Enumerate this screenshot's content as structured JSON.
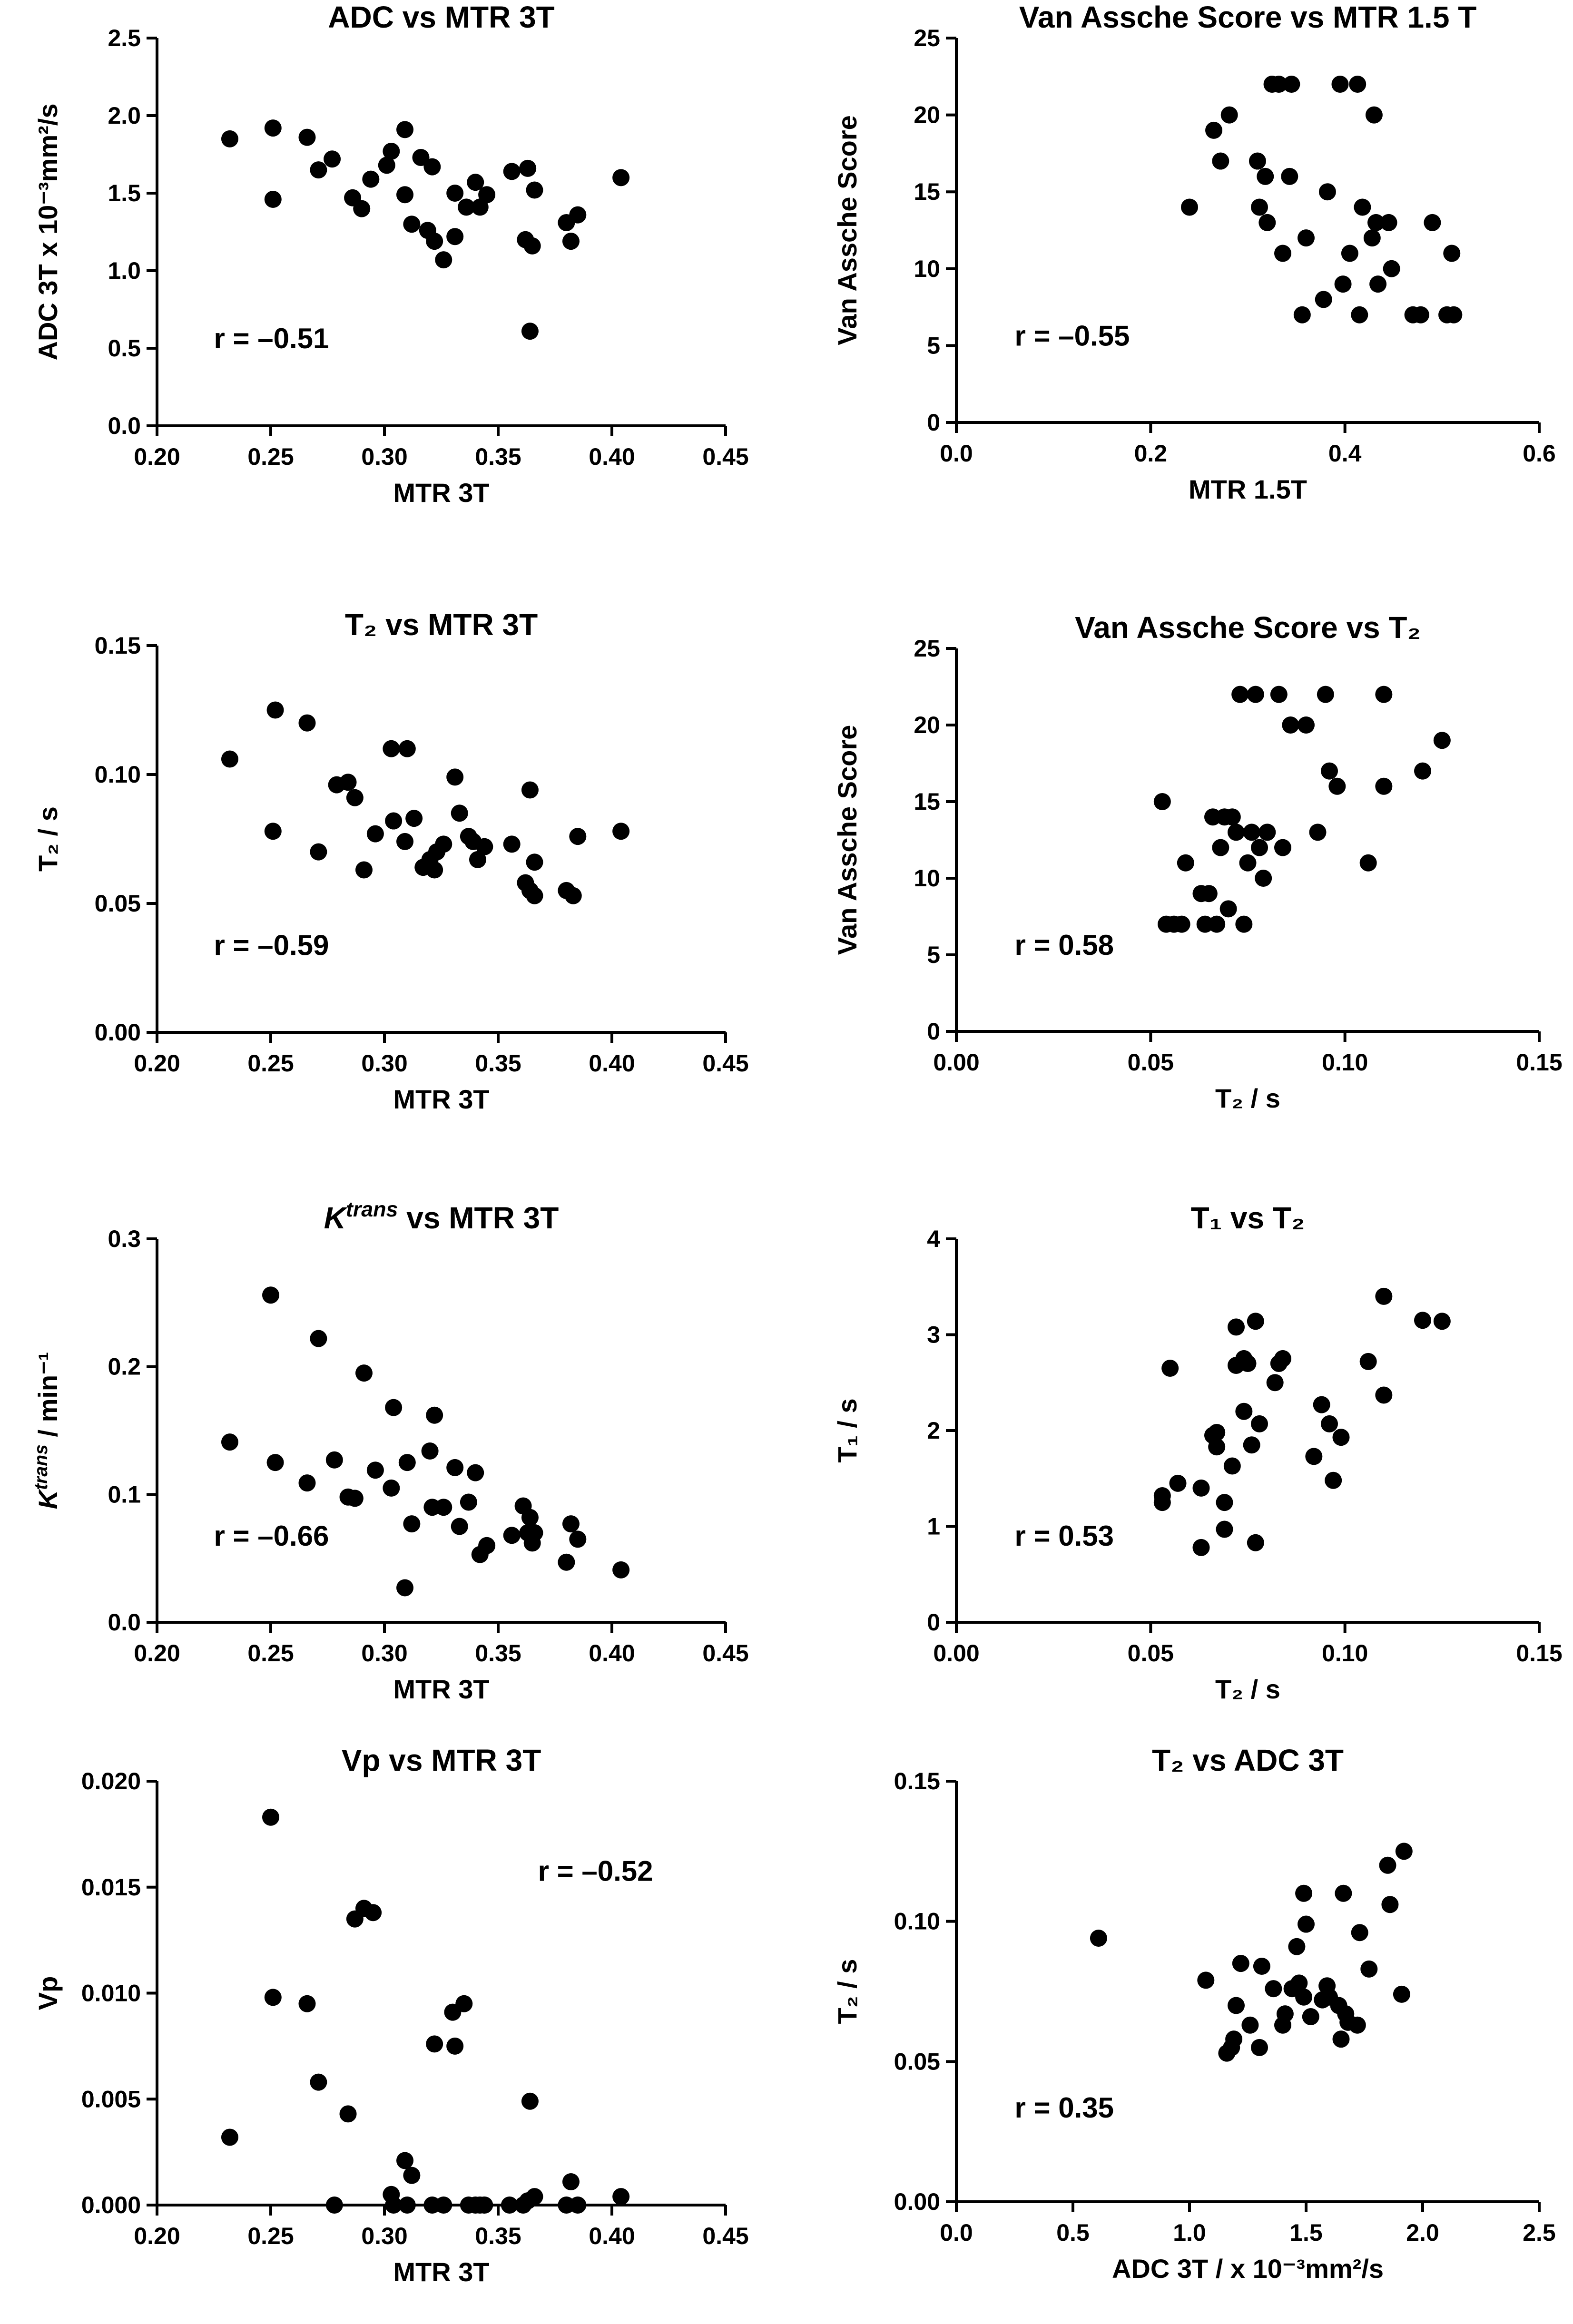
{
  "figure": {
    "background": "#ffffff",
    "ink": "#000000"
  },
  "chart_data": [
    {
      "id": "p1",
      "type": "scatter",
      "title": "ADC vs MTR 3T",
      "xlabel": "MTR 3T",
      "ylabel": "ADC 3T  x 10⁻³mm²/s",
      "xlim": [
        0.2,
        0.45
      ],
      "ylim": [
        0.0,
        2.5
      ],
      "xticks": [
        "0.20",
        "0.25",
        "0.30",
        "0.35",
        "0.40",
        "0.45"
      ],
      "yticks": [
        "0.0",
        "0.5",
        "1.0",
        "1.5",
        "2.0",
        "2.5"
      ],
      "annotation": "r = –0.51",
      "annotation_pos": "bottom-left",
      "grid": false,
      "points": [
        [
          0.232,
          1.85
        ],
        [
          0.251,
          1.92
        ],
        [
          0.251,
          1.46
        ],
        [
          0.266,
          1.86
        ],
        [
          0.271,
          1.65
        ],
        [
          0.277,
          1.72
        ],
        [
          0.286,
          1.47
        ],
        [
          0.29,
          1.4
        ],
        [
          0.294,
          1.59
        ],
        [
          0.301,
          1.68
        ],
        [
          0.303,
          1.77
        ],
        [
          0.309,
          1.91
        ],
        [
          0.309,
          1.49
        ],
        [
          0.312,
          1.3
        ],
        [
          0.316,
          1.73
        ],
        [
          0.319,
          1.26
        ],
        [
          0.321,
          1.67
        ],
        [
          0.322,
          1.19
        ],
        [
          0.326,
          1.07
        ],
        [
          0.331,
          1.5
        ],
        [
          0.331,
          1.22
        ],
        [
          0.336,
          1.41
        ],
        [
          0.34,
          1.57
        ],
        [
          0.342,
          1.41
        ],
        [
          0.345,
          1.49
        ],
        [
          0.356,
          1.64
        ],
        [
          0.362,
          1.2
        ],
        [
          0.363,
          1.66
        ],
        [
          0.364,
          0.61
        ],
        [
          0.365,
          1.16
        ],
        [
          0.366,
          1.52
        ],
        [
          0.38,
          1.31
        ],
        [
          0.382,
          1.19
        ],
        [
          0.385,
          1.36
        ],
        [
          0.404,
          1.6
        ]
      ]
    },
    {
      "id": "p2",
      "type": "scatter",
      "title": "Van Assche Score vs MTR 1.5 T",
      "xlabel": "MTR 1.5T",
      "ylabel": "Van Assche Score",
      "xlim": [
        0.0,
        0.6
      ],
      "ylim": [
        0,
        25
      ],
      "xticks": [
        "0.0",
        "0.2",
        "0.4",
        "0.6"
      ],
      "yticks": [
        "0",
        "5",
        "10",
        "15",
        "20",
        "25"
      ],
      "annotation": "r = –0.55",
      "annotation_pos": "bottom-left",
      "grid": false,
      "points": [
        [
          0.24,
          14
        ],
        [
          0.265,
          19
        ],
        [
          0.272,
          17
        ],
        [
          0.281,
          20
        ],
        [
          0.31,
          17
        ],
        [
          0.312,
          14
        ],
        [
          0.318,
          16
        ],
        [
          0.32,
          13
        ],
        [
          0.325,
          22
        ],
        [
          0.332,
          22
        ],
        [
          0.336,
          11
        ],
        [
          0.343,
          16
        ],
        [
          0.345,
          22
        ],
        [
          0.356,
          7
        ],
        [
          0.36,
          12
        ],
        [
          0.378,
          8
        ],
        [
          0.382,
          15
        ],
        [
          0.395,
          22
        ],
        [
          0.398,
          9
        ],
        [
          0.405,
          11
        ],
        [
          0.413,
          22
        ],
        [
          0.415,
          7
        ],
        [
          0.418,
          14
        ],
        [
          0.428,
          12
        ],
        [
          0.43,
          20
        ],
        [
          0.432,
          13
        ],
        [
          0.434,
          9
        ],
        [
          0.445,
          13
        ],
        [
          0.448,
          10
        ],
        [
          0.47,
          7
        ],
        [
          0.478,
          7
        ],
        [
          0.49,
          13
        ],
        [
          0.505,
          7
        ],
        [
          0.51,
          11
        ],
        [
          0.512,
          7
        ]
      ]
    },
    {
      "id": "p3",
      "type": "scatter",
      "title": "T₂ vs MTR 3T",
      "xlabel": "MTR 3T",
      "ylabel": "T₂  / s",
      "xlim": [
        0.2,
        0.45
      ],
      "ylim": [
        0.0,
        0.15
      ],
      "xticks": [
        "0.20",
        "0.25",
        "0.30",
        "0.35",
        "0.40",
        "0.45"
      ],
      "yticks": [
        "0.00",
        "0.05",
        "0.10",
        "0.15"
      ],
      "annotation": "r = –0.59",
      "annotation_pos": "bottom-left",
      "grid": false,
      "points": [
        [
          0.232,
          0.106
        ],
        [
          0.251,
          0.078
        ],
        [
          0.252,
          0.125
        ],
        [
          0.266,
          0.12
        ],
        [
          0.271,
          0.07
        ],
        [
          0.279,
          0.096
        ],
        [
          0.284,
          0.097
        ],
        [
          0.287,
          0.091
        ],
        [
          0.291,
          0.063
        ],
        [
          0.296,
          0.077
        ],
        [
          0.303,
          0.11
        ],
        [
          0.304,
          0.082
        ],
        [
          0.309,
          0.074
        ],
        [
          0.31,
          0.11
        ],
        [
          0.313,
          0.083
        ],
        [
          0.317,
          0.064
        ],
        [
          0.32,
          0.067
        ],
        [
          0.322,
          0.063
        ],
        [
          0.323,
          0.07
        ],
        [
          0.326,
          0.073
        ],
        [
          0.331,
          0.099
        ],
        [
          0.333,
          0.085
        ],
        [
          0.337,
          0.076
        ],
        [
          0.339,
          0.074
        ],
        [
          0.341,
          0.067
        ],
        [
          0.344,
          0.072
        ],
        [
          0.356,
          0.073
        ],
        [
          0.362,
          0.058
        ],
        [
          0.364,
          0.055
        ],
        [
          0.364,
          0.094
        ],
        [
          0.366,
          0.066
        ],
        [
          0.366,
          0.053
        ],
        [
          0.38,
          0.055
        ],
        [
          0.383,
          0.053
        ],
        [
          0.385,
          0.076
        ],
        [
          0.404,
          0.078
        ]
      ]
    },
    {
      "id": "p4",
      "type": "scatter",
      "title": "Van Assche Score vs T₂",
      "xlabel": "T₂ / s",
      "ylabel": "Van Assche Score",
      "xlim": [
        0.0,
        0.15
      ],
      "ylim": [
        0,
        25
      ],
      "xticks": [
        "0.00",
        "0.05",
        "0.10",
        "0.15"
      ],
      "yticks": [
        "0",
        "5",
        "10",
        "15",
        "20",
        "25"
      ],
      "annotation": "r = 0.58",
      "annotation_pos": "bottom-left",
      "grid": false,
      "points": [
        [
          0.053,
          15
        ],
        [
          0.054,
          7
        ],
        [
          0.056,
          7
        ],
        [
          0.058,
          7
        ],
        [
          0.059,
          11
        ],
        [
          0.063,
          9
        ],
        [
          0.064,
          7
        ],
        [
          0.065,
          9
        ],
        [
          0.066,
          14
        ],
        [
          0.067,
          7
        ],
        [
          0.068,
          12
        ],
        [
          0.069,
          14
        ],
        [
          0.07,
          8
        ],
        [
          0.071,
          14
        ],
        [
          0.072,
          13
        ],
        [
          0.073,
          22
        ],
        [
          0.074,
          7
        ],
        [
          0.075,
          11
        ],
        [
          0.076,
          13
        ],
        [
          0.077,
          22
        ],
        [
          0.078,
          12
        ],
        [
          0.079,
          10
        ],
        [
          0.08,
          13
        ],
        [
          0.083,
          22
        ],
        [
          0.084,
          12
        ],
        [
          0.086,
          20
        ],
        [
          0.09,
          20
        ],
        [
          0.093,
          13
        ],
        [
          0.095,
          22
        ],
        [
          0.096,
          17
        ],
        [
          0.098,
          16
        ],
        [
          0.106,
          11
        ],
        [
          0.11,
          22
        ],
        [
          0.11,
          16
        ],
        [
          0.12,
          17
        ],
        [
          0.125,
          19
        ]
      ]
    },
    {
      "id": "p5",
      "type": "scatter",
      "title": "K",
      "title_superscript": "trans",
      "title_suffix": " vs MTR 3T",
      "xlabel": "MTR 3T",
      "ylabel": "K",
      "ylabel_superscript": "trans",
      "ylabel_suffix": " / min⁻¹",
      "xlim": [
        0.2,
        0.45
      ],
      "ylim": [
        0.0,
        0.3
      ],
      "xticks": [
        "0.20",
        "0.25",
        "0.30",
        "0.35",
        "0.40",
        "0.45"
      ],
      "yticks": [
        "0.0",
        "0.1",
        "0.2",
        "0.3"
      ],
      "annotation": "r = –0.66",
      "annotation_pos": "bottom-left",
      "grid": false,
      "points": [
        [
          0.232,
          0.141
        ],
        [
          0.25,
          0.256
        ],
        [
          0.252,
          0.125
        ],
        [
          0.266,
          0.109
        ],
        [
          0.271,
          0.222
        ],
        [
          0.278,
          0.127
        ],
        [
          0.284,
          0.098
        ],
        [
          0.287,
          0.097
        ],
        [
          0.291,
          0.195
        ],
        [
          0.296,
          0.119
        ],
        [
          0.303,
          0.105
        ],
        [
          0.304,
          0.168
        ],
        [
          0.309,
          0.027
        ],
        [
          0.31,
          0.125
        ],
        [
          0.312,
          0.077
        ],
        [
          0.32,
          0.134
        ],
        [
          0.321,
          0.09
        ],
        [
          0.322,
          0.162
        ],
        [
          0.326,
          0.09
        ],
        [
          0.331,
          0.121
        ],
        [
          0.333,
          0.075
        ],
        [
          0.337,
          0.094
        ],
        [
          0.34,
          0.117
        ],
        [
          0.342,
          0.053
        ],
        [
          0.345,
          0.06
        ],
        [
          0.356,
          0.068
        ],
        [
          0.361,
          0.091
        ],
        [
          0.363,
          0.07
        ],
        [
          0.364,
          0.082
        ],
        [
          0.365,
          0.062
        ],
        [
          0.366,
          0.07
        ],
        [
          0.38,
          0.047
        ],
        [
          0.382,
          0.077
        ],
        [
          0.385,
          0.065
        ],
        [
          0.404,
          0.041
        ]
      ]
    },
    {
      "id": "p6",
      "type": "scatter",
      "title": "T₁ vs T₂",
      "xlabel": "T₂ / s",
      "ylabel": "T₁ / s",
      "xlim": [
        0.0,
        0.15
      ],
      "ylim": [
        0,
        4
      ],
      "xticks": [
        "0.00",
        "0.05",
        "0.10",
        "0.15"
      ],
      "yticks": [
        "0",
        "1",
        "2",
        "3",
        "4"
      ],
      "annotation": "r = 0.53",
      "annotation_pos": "bottom-left",
      "grid": false,
      "points": [
        [
          0.053,
          1.32
        ],
        [
          0.053,
          1.25
        ],
        [
          0.055,
          2.65
        ],
        [
          0.057,
          1.45
        ],
        [
          0.063,
          1.4
        ],
        [
          0.063,
          0.78
        ],
        [
          0.066,
          1.95
        ],
        [
          0.067,
          1.83
        ],
        [
          0.067,
          1.98
        ],
        [
          0.069,
          0.97
        ],
        [
          0.069,
          1.25
        ],
        [
          0.071,
          1.63
        ],
        [
          0.072,
          3.08
        ],
        [
          0.072,
          2.68
        ],
        [
          0.074,
          2.2
        ],
        [
          0.074,
          2.75
        ],
        [
          0.075,
          2.7
        ],
        [
          0.076,
          1.85
        ],
        [
          0.077,
          0.83
        ],
        [
          0.077,
          3.14
        ],
        [
          0.078,
          2.07
        ],
        [
          0.082,
          2.5
        ],
        [
          0.083,
          2.7
        ],
        [
          0.084,
          2.75
        ],
        [
          0.092,
          1.73
        ],
        [
          0.094,
          2.27
        ],
        [
          0.096,
          2.07
        ],
        [
          0.097,
          1.48
        ],
        [
          0.099,
          1.93
        ],
        [
          0.106,
          2.72
        ],
        [
          0.11,
          3.4
        ],
        [
          0.11,
          2.37
        ],
        [
          0.12,
          3.15
        ],
        [
          0.125,
          3.14
        ]
      ]
    },
    {
      "id": "p7",
      "type": "scatter",
      "title": "Vp vs MTR 3T",
      "xlabel": "MTR 3T",
      "ylabel": "Vp",
      "xlim": [
        0.2,
        0.45
      ],
      "ylim": [
        0.0,
        0.02
      ],
      "xticks": [
        "0.20",
        "0.25",
        "0.30",
        "0.35",
        "0.40",
        "0.45"
      ],
      "yticks": [
        "0.000",
        "0.005",
        "0.010",
        "0.015",
        "0.020"
      ],
      "annotation": "r = –0.52",
      "annotation_pos": "top-right",
      "grid": false,
      "points": [
        [
          0.232,
          0.0032
        ],
        [
          0.25,
          0.0183
        ],
        [
          0.251,
          0.0098
        ],
        [
          0.266,
          0.0095
        ],
        [
          0.271,
          0.0058
        ],
        [
          0.278,
          0.0
        ],
        [
          0.284,
          0.0043
        ],
        [
          0.287,
          0.0135
        ],
        [
          0.291,
          0.014
        ],
        [
          0.295,
          0.0138
        ],
        [
          0.303,
          0.0005
        ],
        [
          0.304,
          0.0
        ],
        [
          0.309,
          0.0021
        ],
        [
          0.31,
          0.0
        ],
        [
          0.312,
          0.0014
        ],
        [
          0.321,
          0.0
        ],
        [
          0.322,
          0.0076
        ],
        [
          0.326,
          0.0
        ],
        [
          0.33,
          0.0091
        ],
        [
          0.331,
          0.0075
        ],
        [
          0.335,
          0.0095
        ],
        [
          0.337,
          0.0
        ],
        [
          0.34,
          0.0
        ],
        [
          0.342,
          0.0
        ],
        [
          0.344,
          0.0
        ],
        [
          0.355,
          0.0
        ],
        [
          0.361,
          0.0
        ],
        [
          0.363,
          0.0002
        ],
        [
          0.364,
          0.0049
        ],
        [
          0.366,
          0.0004
        ],
        [
          0.38,
          0.0
        ],
        [
          0.382,
          0.0011
        ],
        [
          0.385,
          0.0
        ],
        [
          0.404,
          0.0004
        ]
      ]
    },
    {
      "id": "p8",
      "type": "scatter",
      "title": "T₂ vs ADC 3T",
      "xlabel": "ADC 3T / x 10⁻³mm²/s",
      "ylabel": "T₂  / s",
      "xlim": [
        0.0,
        2.5
      ],
      "ylim": [
        0.0,
        0.15
      ],
      "xticks": [
        "0.0",
        "0.5",
        "1.0",
        "1.5",
        "2.0",
        "2.5"
      ],
      "yticks": [
        "0.00",
        "0.05",
        "0.10",
        "0.15"
      ],
      "annotation": "r = 0.35",
      "annotation_pos": "bottom-left",
      "grid": false,
      "points": [
        [
          0.61,
          0.094
        ],
        [
          1.07,
          0.079
        ],
        [
          1.16,
          0.053
        ],
        [
          1.18,
          0.055
        ],
        [
          1.19,
          0.058
        ],
        [
          1.2,
          0.07
        ],
        [
          1.22,
          0.085
        ],
        [
          1.26,
          0.063
        ],
        [
          1.3,
          0.055
        ],
        [
          1.31,
          0.084
        ],
        [
          1.36,
          0.076
        ],
        [
          1.4,
          0.063
        ],
        [
          1.41,
          0.067
        ],
        [
          1.44,
          0.076
        ],
        [
          1.46,
          0.091
        ],
        [
          1.47,
          0.078
        ],
        [
          1.49,
          0.11
        ],
        [
          1.49,
          0.073
        ],
        [
          1.5,
          0.099
        ],
        [
          1.52,
          0.066
        ],
        [
          1.57,
          0.072
        ],
        [
          1.59,
          0.077
        ],
        [
          1.6,
          0.073
        ],
        [
          1.64,
          0.07
        ],
        [
          1.65,
          0.058
        ],
        [
          1.66,
          0.11
        ],
        [
          1.67,
          0.067
        ],
        [
          1.68,
          0.064
        ],
        [
          1.72,
          0.063
        ],
        [
          1.73,
          0.096
        ],
        [
          1.77,
          0.083
        ],
        [
          1.85,
          0.12
        ],
        [
          1.86,
          0.106
        ],
        [
          1.91,
          0.074
        ],
        [
          1.92,
          0.125
        ]
      ]
    }
  ]
}
